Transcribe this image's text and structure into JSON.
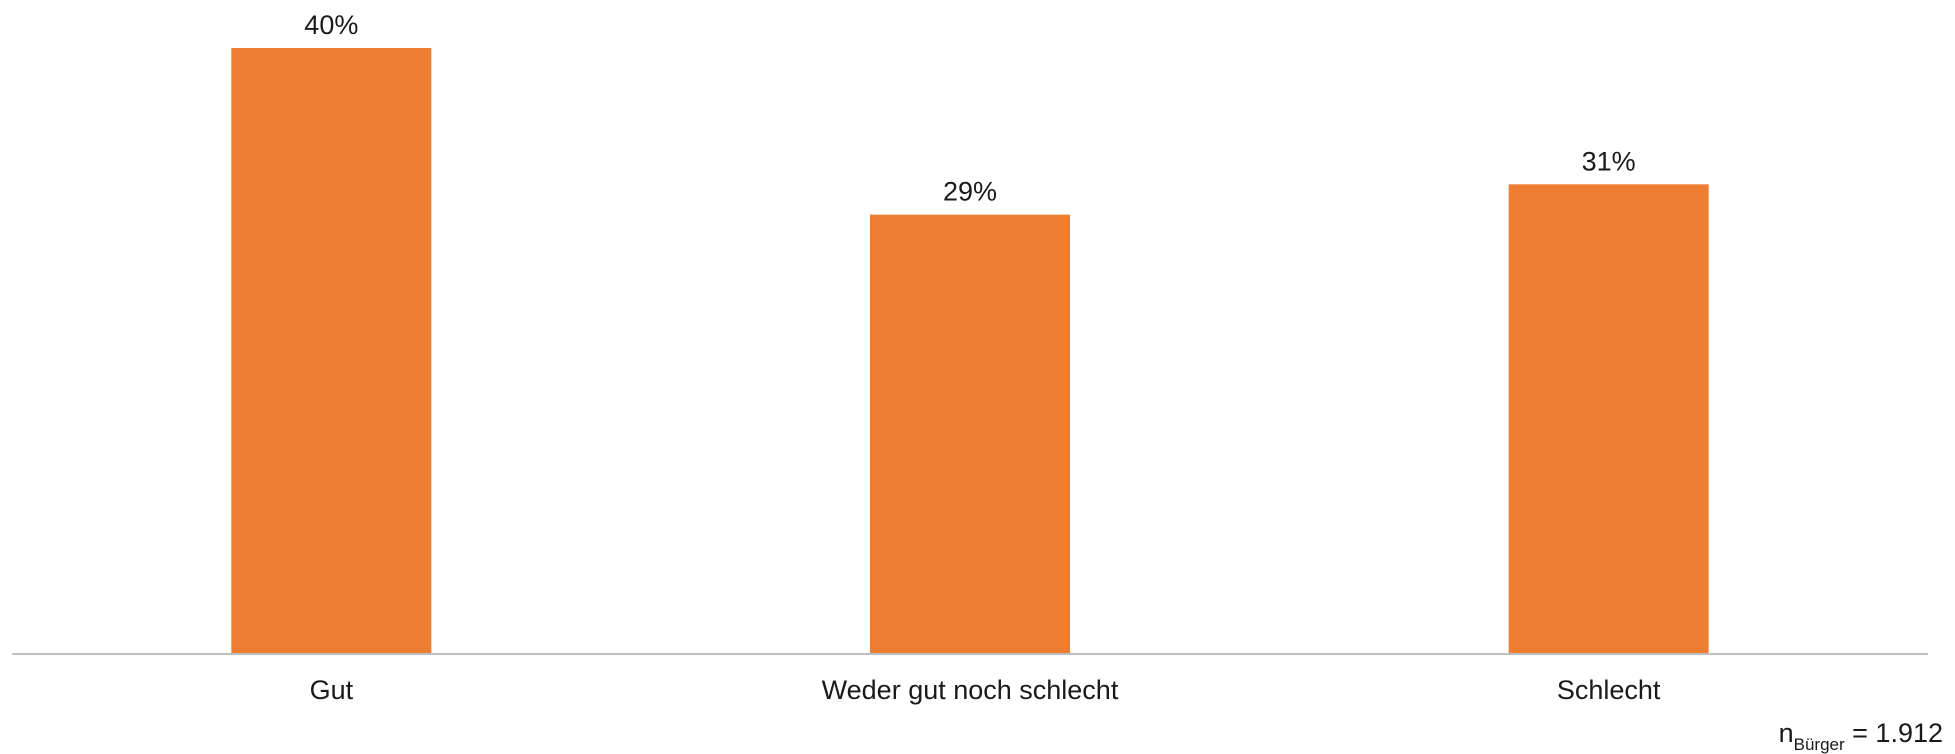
{
  "chart_data": {
    "type": "bar",
    "categories": [
      "Gut",
      "Weder gut noch schlecht",
      "Schlecht"
    ],
    "values": [
      40,
      29,
      31
    ],
    "value_labels": [
      "40%",
      "29%",
      "31%"
    ],
    "unit": "%",
    "title": "",
    "xlabel": "",
    "ylabel": "",
    "ylim": [
      0,
      40
    ],
    "grid": false,
    "legend": "none",
    "bar_color": "#ED7D31",
    "axis_color": "#BFBFBF"
  },
  "footnote": {
    "n_symbol": "n",
    "n_subscript": "Bürger",
    "n_value": "= 1.912"
  }
}
